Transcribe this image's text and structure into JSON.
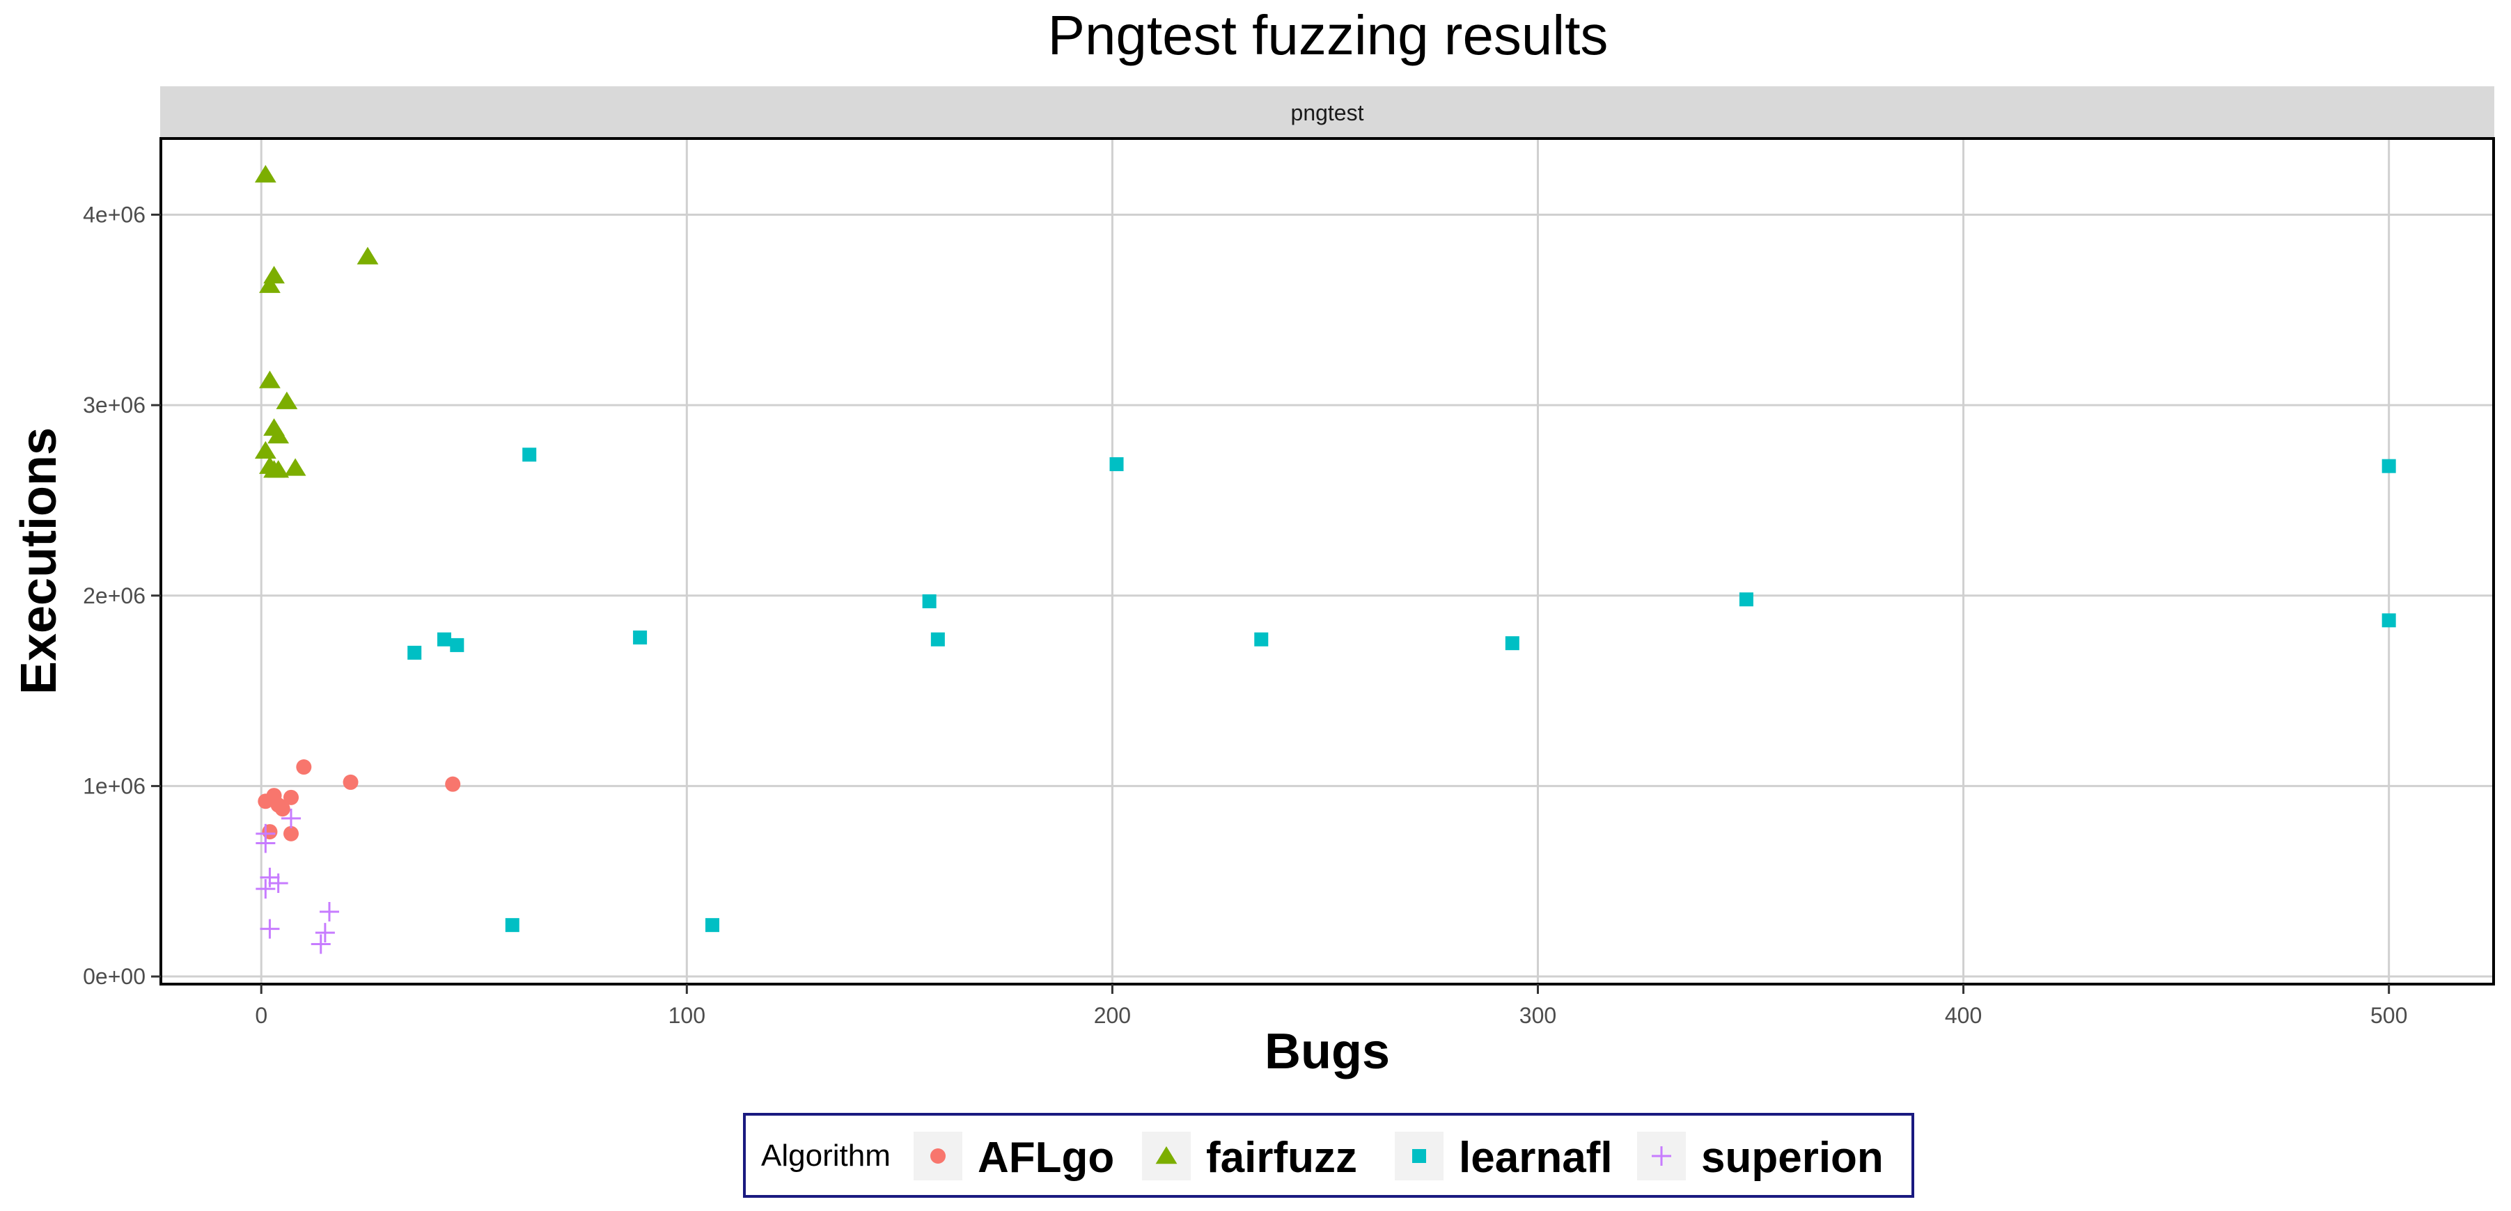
{
  "chart_data": {
    "type": "scatter",
    "title": "Pngtest fuzzing results",
    "facet_label": "pngtest",
    "xlabel": "Bugs",
    "ylabel": "Executions",
    "xlim": [
      -23.6,
      524.6
    ],
    "ylim": [
      -40000,
      4400000
    ],
    "x_ticks": [
      0,
      100,
      200,
      300,
      400,
      500
    ],
    "x_tick_labels": [
      "0",
      "100",
      "200",
      "300",
      "400",
      "500"
    ],
    "y_ticks": [
      0,
      1000000,
      2000000,
      3000000,
      4000000
    ],
    "y_tick_labels": [
      "0e+00",
      "1e+06",
      "2e+06",
      "3e+06",
      "4e+06"
    ],
    "grid": true,
    "legend": {
      "title": "Algorithm",
      "position": "bottom"
    },
    "series": [
      {
        "name": "AFLgo",
        "color": "#F8766D",
        "marker": "circle",
        "points": [
          [
            1,
            920000
          ],
          [
            2,
            760000
          ],
          [
            3,
            950000
          ],
          [
            4,
            900000
          ],
          [
            5,
            880000
          ],
          [
            7,
            940000
          ],
          [
            7,
            750000
          ],
          [
            10,
            1100000
          ],
          [
            21,
            1020000
          ],
          [
            45,
            1010000
          ]
        ]
      },
      {
        "name": "fairfuzz",
        "color": "#7CAE00",
        "marker": "triangle",
        "points": [
          [
            1,
            4210000
          ],
          [
            2,
            3630000
          ],
          [
            3,
            3680000
          ],
          [
            25,
            3780000
          ],
          [
            2,
            3130000
          ],
          [
            6,
            3020000
          ],
          [
            3,
            2880000
          ],
          [
            4,
            2840000
          ],
          [
            1,
            2760000
          ],
          [
            2,
            2680000
          ],
          [
            3,
            2660000
          ],
          [
            4,
            2660000
          ],
          [
            8,
            2670000
          ]
        ]
      },
      {
        "name": "learnafl",
        "color": "#00BFC4",
        "marker": "square",
        "points": [
          [
            63,
            2740000
          ],
          [
            201,
            2690000
          ],
          [
            500,
            2680000
          ],
          [
            157,
            1970000
          ],
          [
            349,
            1980000
          ],
          [
            500,
            1870000
          ],
          [
            36,
            1700000
          ],
          [
            43,
            1770000
          ],
          [
            46,
            1740000
          ],
          [
            89,
            1780000
          ],
          [
            159,
            1770000
          ],
          [
            235,
            1770000
          ],
          [
            294,
            1750000
          ],
          [
            59,
            270000
          ],
          [
            106,
            270000
          ]
        ]
      },
      {
        "name": "superion",
        "color": "#C77CFF",
        "marker": "plus",
        "points": [
          [
            1,
            700000
          ],
          [
            1,
            750000
          ],
          [
            7,
            830000
          ],
          [
            1,
            460000
          ],
          [
            2,
            520000
          ],
          [
            4,
            490000
          ],
          [
            2,
            250000
          ],
          [
            16,
            340000
          ],
          [
            15,
            230000
          ],
          [
            14,
            170000
          ]
        ]
      }
    ]
  }
}
